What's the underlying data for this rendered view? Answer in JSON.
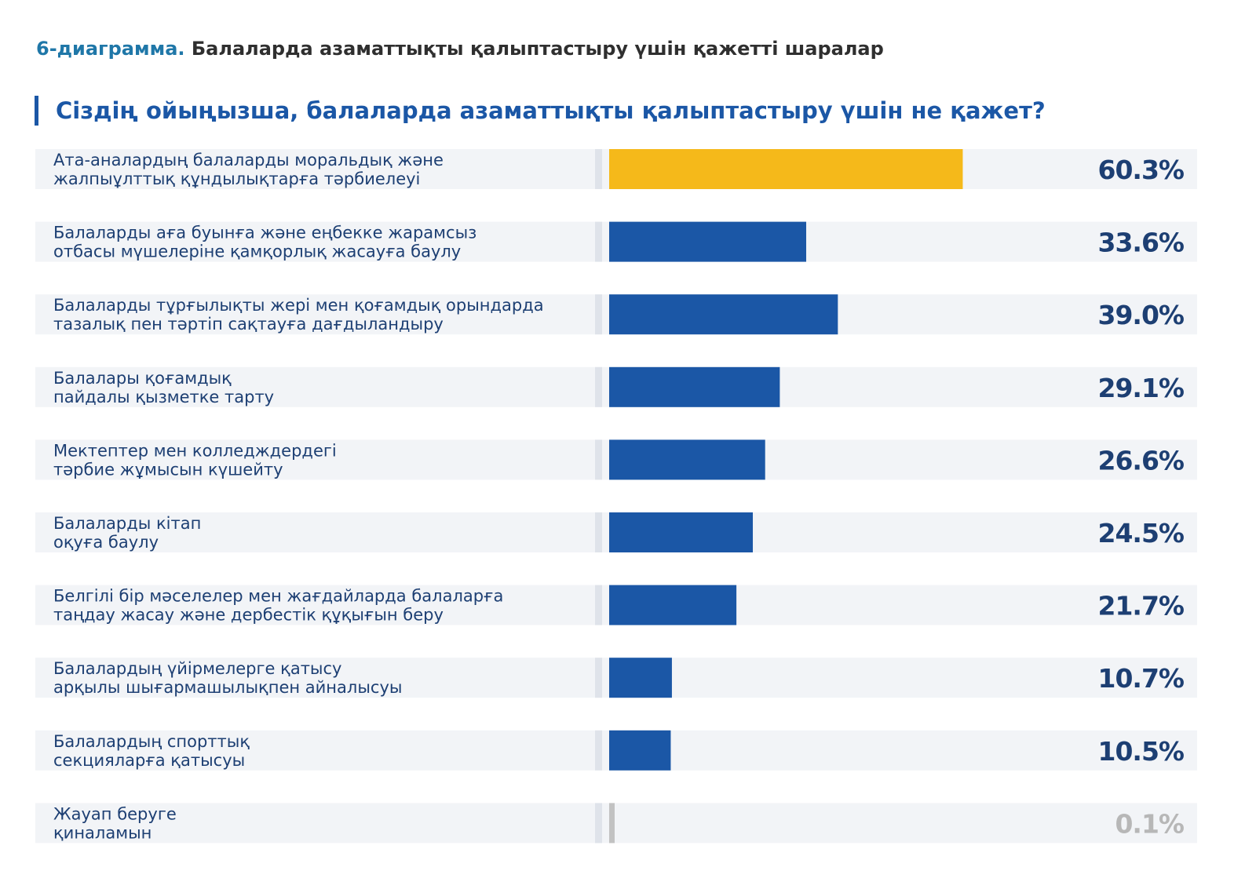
{
  "header": {
    "figure_number": "6-диаграмма.",
    "figure_title": "Балаларда азаматтықты қалыптастыру үшін қажетті шаралар",
    "question": "Сіздің ойыңызша, балаларда азаматтықты қалыптастыру үшін не қажет?"
  },
  "colors": {
    "highlight": "#f5b91a",
    "bar": "#1b57a6",
    "muted": "#c2c2c2",
    "row_background": "#f2f4f7",
    "divider": "#dfe3ea",
    "label": "#1d3f73",
    "value": "#1d3f73",
    "muted_value": "#b7b7b7"
  },
  "chart_data": {
    "type": "bar",
    "orientation": "horizontal",
    "title": "Сіздің ойыңызша, балаларда азаматтықты қалыптастыру үшін не қажет?",
    "xlim": [
      0,
      100
    ],
    "grid": false,
    "highlight_index": 0,
    "muted_index": 9,
    "categories": [
      [
        "Ата-аналардың балаларды моральдық және",
        "жалпыұлттық құндылықтарға тәрбиелеуі"
      ],
      [
        "Балаларды аға буынға және еңбекке жарамсыз",
        "отбасы мүшелеріне қамқорлық жасауға баулу"
      ],
      [
        "Балаларды тұрғылықты жері мен қоғамдық орындарда",
        "тазалық пен тәртіп сақтауға дағдыландыру"
      ],
      [
        "Балалары қоғамдық",
        "пайдалы қызметке тарту"
      ],
      [
        "Мектептер мен колледждердегі",
        "тәрбие жұмысын күшейту"
      ],
      [
        "Балаларды кітап",
        "оқуға баулу"
      ],
      [
        "Белгілі бір мәселелер мен жағдайларда балаларға",
        "таңдау жасау және дербестік құқығын беру"
      ],
      [
        "Балалардың үйірмелерге қатысу",
        "арқылы шығармашылықпен айналысуы"
      ],
      [
        "Балалардың спорттық",
        "секцияларға қатысуы"
      ],
      [
        "Жауап беруге",
        "қиналамын"
      ]
    ],
    "values": [
      60.3,
      33.6,
      39.0,
      29.1,
      26.6,
      24.5,
      21.7,
      10.7,
      10.5,
      0.1
    ],
    "value_labels": [
      "60.3%",
      "33.6%",
      "39.0%",
      "29.1%",
      "26.6%",
      "24.5%",
      "21.7%",
      "10.7%",
      "10.5%",
      "0.1%"
    ]
  }
}
